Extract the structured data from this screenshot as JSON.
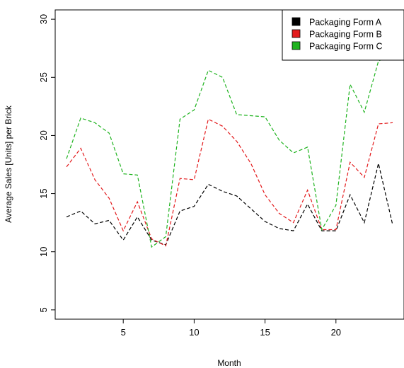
{
  "chart_data": {
    "type": "line",
    "title": "",
    "xlabel": "Month",
    "ylabel": "Average Sales [Units] per Brick",
    "x": [
      1,
      2,
      3,
      4,
      5,
      6,
      7,
      8,
      9,
      10,
      11,
      12,
      13,
      14,
      15,
      16,
      17,
      18,
      19,
      20,
      21,
      22,
      23,
      24
    ],
    "xlim": [
      0.2,
      24.8
    ],
    "ylim": [
      4.2,
      30.8
    ],
    "xticks": [
      5,
      10,
      15,
      20
    ],
    "yticks": [
      5,
      10,
      15,
      20,
      25,
      30
    ],
    "grid": false,
    "line_style": "dashed",
    "legend": {
      "position": "top-right"
    },
    "series": [
      {
        "name": "Packaging Form A",
        "color": "#000000",
        "values": [
          13.0,
          13.5,
          12.4,
          12.7,
          11.0,
          13.0,
          11.0,
          10.6,
          13.5,
          13.9,
          15.8,
          15.2,
          14.8,
          13.7,
          12.6,
          12.0,
          11.8,
          14.1,
          11.8,
          11.8,
          14.9,
          12.5,
          17.6,
          12.3
        ]
      },
      {
        "name": "Packaging Form B",
        "color": "#e31a1c",
        "values": [
          17.3,
          18.9,
          16.2,
          14.6,
          11.8,
          14.3,
          11.1,
          10.5,
          16.3,
          16.2,
          21.4,
          20.8,
          19.5,
          17.6,
          14.9,
          13.3,
          12.5,
          15.3,
          11.9,
          11.9,
          17.7,
          16.4,
          21.0,
          21.1
        ]
      },
      {
        "name": "Packaging Form C",
        "color": "#1eb31e",
        "values": [
          18.0,
          21.5,
          21.1,
          20.2,
          16.7,
          16.6,
          10.4,
          11.3,
          21.4,
          22.2,
          25.6,
          25.0,
          21.8,
          21.7,
          21.6,
          19.6,
          18.5,
          19.0,
          11.9,
          14.0,
          24.4,
          22.0,
          26.4,
          27.0
        ]
      }
    ]
  }
}
